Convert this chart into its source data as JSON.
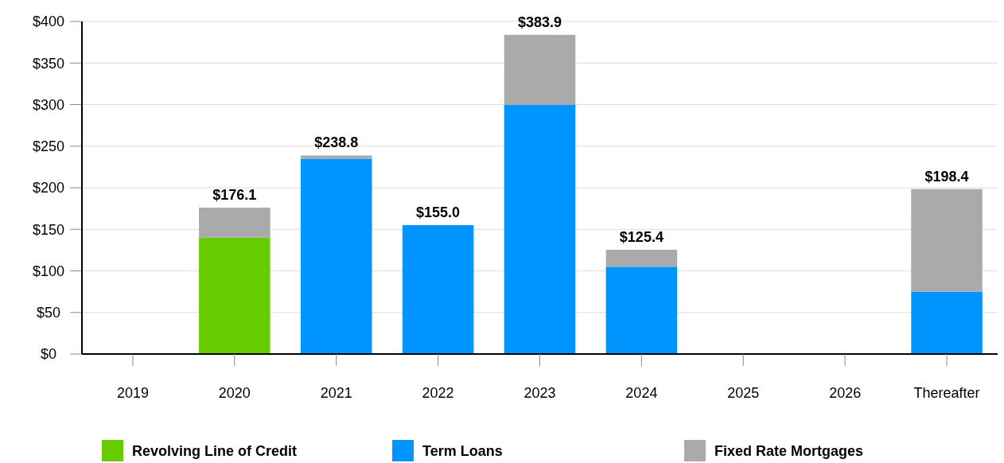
{
  "chart_data": {
    "type": "bar",
    "stacked": true,
    "categories": [
      "2019",
      "2020",
      "2021",
      "2022",
      "2023",
      "2024",
      "2025",
      "2026",
      "Thereafter"
    ],
    "series": [
      {
        "name": "Revolving Line of Credit",
        "color": "#66cc00",
        "values": [
          null,
          140,
          null,
          null,
          null,
          null,
          null,
          null,
          null
        ]
      },
      {
        "name": "Term Loans",
        "color": "#0094ff",
        "values": [
          null,
          null,
          235,
          155,
          300,
          105,
          null,
          null,
          75
        ]
      },
      {
        "name": "Fixed Rate Mortgages",
        "color": "#aaaaaa",
        "values": [
          null,
          36.1,
          3.8,
          null,
          83.9,
          20.4,
          null,
          null,
          123.4
        ]
      }
    ],
    "totals": [
      null,
      "$176.1",
      "$238.8",
      "$155.0",
      "$383.9",
      "$125.4",
      null,
      null,
      "$198.4"
    ],
    "ylim": [
      0,
      400
    ],
    "yticks": [
      {
        "value": 0,
        "label": "$0"
      },
      {
        "value": 50,
        "label": "$50"
      },
      {
        "value": 100,
        "label": "$100"
      },
      {
        "value": 150,
        "label": "$150"
      },
      {
        "value": 200,
        "label": "$200"
      },
      {
        "value": 250,
        "label": "$250"
      },
      {
        "value": 300,
        "label": "$300"
      },
      {
        "value": 350,
        "label": "$350"
      },
      {
        "value": 400,
        "label": "$400"
      }
    ],
    "grid": "y",
    "legend": "bottom"
  }
}
